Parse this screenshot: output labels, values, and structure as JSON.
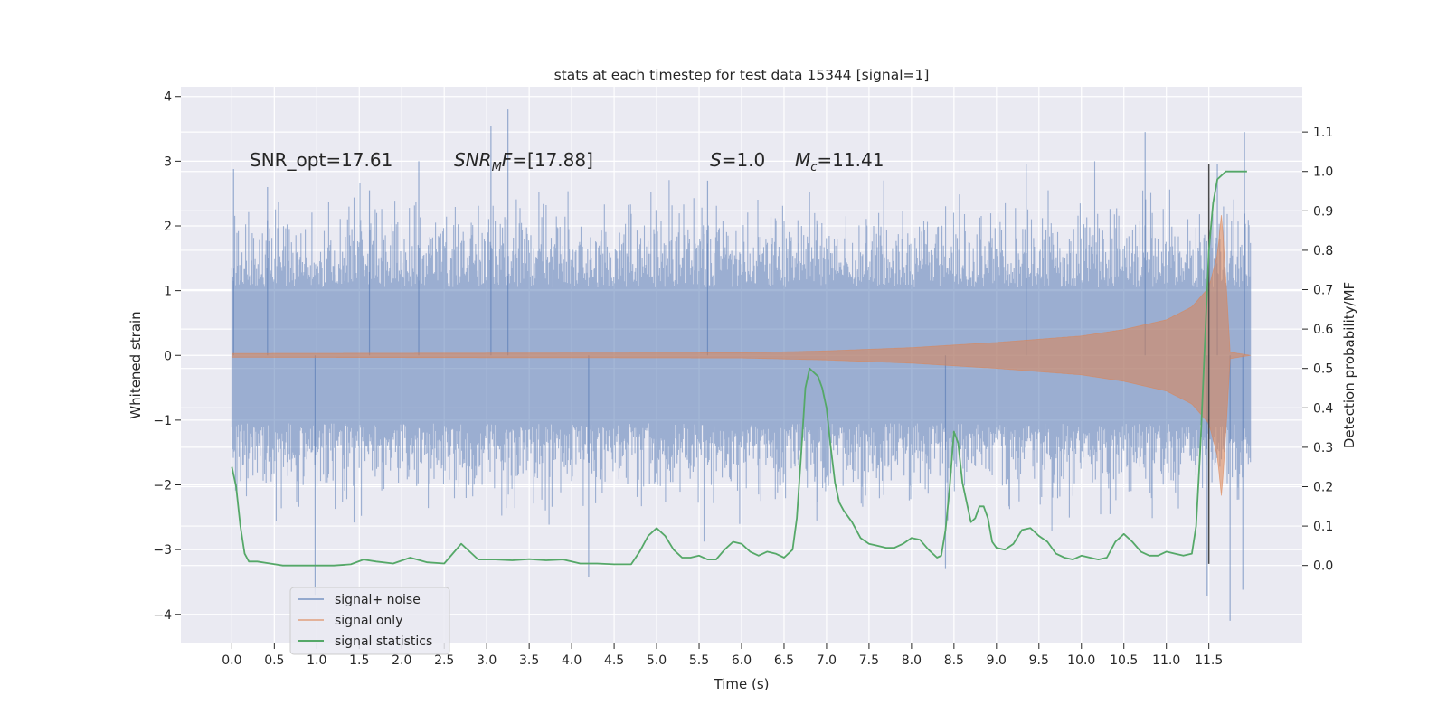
{
  "chart_data": {
    "type": "line",
    "title": "stats at each timestep for test data 15344 [signal=1]",
    "xlabel": "Time (s)",
    "ylabel": "Whitened strain",
    "y2label": "Detection probability/MF",
    "xlim": [
      -0.6,
      12.6
    ],
    "ylim": [
      -4.45,
      4.15
    ],
    "y2lim": [
      -0.198,
      1.215
    ],
    "x_ticks": [
      "0.0",
      "0.5",
      "1.0",
      "1.5",
      "2.0",
      "2.5",
      "3.0",
      "3.5",
      "4.0",
      "4.5",
      "5.0",
      "5.5",
      "6.0",
      "6.5",
      "7.0",
      "7.5",
      "8.0",
      "8.5",
      "9.0",
      "9.5",
      "10.0",
      "10.5",
      "11.0",
      "11.5"
    ],
    "y_ticks": [
      "4",
      "3",
      "2",
      "1",
      "0",
      "-1",
      "-2",
      "-3",
      "-4"
    ],
    "y_tick_text": [
      "4",
      "3",
      "2",
      "1",
      "0",
      "−1",
      "−2",
      "−3",
      "−4"
    ],
    "y2_ticks": [
      "1.1",
      "1.0",
      "0.9",
      "0.8",
      "0.7",
      "0.6",
      "0.5",
      "0.4",
      "0.3",
      "0.2",
      "0.1",
      "0.0"
    ],
    "grid": true,
    "legend_position": "lower-left",
    "annotations": {
      "snr_opt": "SNR_opt=17.61",
      "snr_mf_sym": "SNR",
      "snr_mf_sub": "M",
      "snr_mf_tail": "F",
      "snr_mf_val": "=[17.88]",
      "s_sym": "S",
      "s_val": "=1.0",
      "mc_sym": "M",
      "mc_sub": "c",
      "mc_val": "=11.41"
    },
    "series": [
      {
        "name": "signal+ noise",
        "color": "#4c72b0",
        "axis": "left",
        "x_range": [
          0.0,
          11.99
        ],
        "envelope_peaks": [
          {
            "x": 0.02,
            "y": 2.88
          },
          {
            "x": 0.42,
            "y": 2.6
          },
          {
            "x": 0.98,
            "y": -3.7
          },
          {
            "x": 1.62,
            "y": 2.55
          },
          {
            "x": 2.2,
            "y": 3.0
          },
          {
            "x": 3.05,
            "y": 3.55
          },
          {
            "x": 3.25,
            "y": 3.8
          },
          {
            "x": 4.2,
            "y": -3.42
          },
          {
            "x": 5.6,
            "y": 2.7
          },
          {
            "x": 8.4,
            "y": -3.3
          },
          {
            "x": 9.35,
            "y": 2.95
          },
          {
            "x": 10.75,
            "y": 3.45
          },
          {
            "x": 11.48,
            "y": -3.72
          },
          {
            "x": 11.6,
            "y": 2.95
          },
          {
            "x": 11.75,
            "y": -4.1
          },
          {
            "x": 11.92,
            "y": 3.45
          },
          {
            "x": 11.9,
            "y": -3.62
          }
        ],
        "typical_band": [
          -1.8,
          1.8
        ]
      },
      {
        "name": "signal only",
        "color": "#dd8452",
        "axis": "left",
        "amplitude_envelope": {
          "x": [
            0.0,
            6.0,
            7.0,
            8.0,
            9.0,
            10.0,
            10.5,
            11.0,
            11.3,
            11.5,
            11.6,
            11.65,
            11.7,
            11.75,
            11.99
          ],
          "amp": [
            0.03,
            0.04,
            0.07,
            0.12,
            0.2,
            0.3,
            0.4,
            0.55,
            0.75,
            1.05,
            1.55,
            2.2,
            1.2,
            0.05,
            0.0
          ]
        }
      },
      {
        "name": "signal statistics",
        "color": "#55a868",
        "axis": "right",
        "x": [
          0.0,
          0.05,
          0.1,
          0.15,
          0.2,
          0.3,
          0.45,
          0.6,
          0.8,
          1.0,
          1.2,
          1.4,
          1.55,
          1.7,
          1.9,
          2.1,
          2.3,
          2.5,
          2.6,
          2.7,
          2.8,
          2.9,
          3.1,
          3.3,
          3.5,
          3.7,
          3.9,
          4.1,
          4.3,
          4.5,
          4.7,
          4.8,
          4.9,
          5.0,
          5.1,
          5.2,
          5.3,
          5.4,
          5.5,
          5.6,
          5.7,
          5.8,
          5.9,
          6.0,
          6.1,
          6.2,
          6.3,
          6.4,
          6.5,
          6.6,
          6.65,
          6.7,
          6.75,
          6.8,
          6.85,
          6.9,
          6.95,
          7.0,
          7.05,
          7.1,
          7.15,
          7.2,
          7.3,
          7.4,
          7.5,
          7.6,
          7.7,
          7.8,
          7.9,
          8.0,
          8.1,
          8.2,
          8.3,
          8.35,
          8.4,
          8.45,
          8.5,
          8.55,
          8.6,
          8.65,
          8.7,
          8.75,
          8.8,
          8.85,
          8.9,
          8.95,
          9.0,
          9.1,
          9.2,
          9.3,
          9.4,
          9.5,
          9.6,
          9.7,
          9.8,
          9.9,
          10.0,
          10.1,
          10.2,
          10.3,
          10.4,
          10.5,
          10.6,
          10.7,
          10.8,
          10.9,
          11.0,
          11.1,
          11.2,
          11.3,
          11.35,
          11.4,
          11.45,
          11.5,
          11.55,
          11.6,
          11.7,
          11.8,
          11.9,
          11.95
        ],
        "y": [
          0.25,
          0.2,
          0.1,
          0.03,
          0.01,
          0.01,
          0.005,
          0.0,
          0.0,
          0.0,
          0.0,
          0.003,
          0.015,
          0.01,
          0.005,
          0.02,
          0.008,
          0.005,
          0.03,
          0.055,
          0.035,
          0.015,
          0.015,
          0.013,
          0.016,
          0.013,
          0.015,
          0.005,
          0.005,
          0.003,
          0.003,
          0.035,
          0.075,
          0.095,
          0.075,
          0.04,
          0.02,
          0.02,
          0.025,
          0.015,
          0.015,
          0.04,
          0.06,
          0.055,
          0.035,
          0.025,
          0.035,
          0.03,
          0.02,
          0.04,
          0.12,
          0.28,
          0.45,
          0.5,
          0.49,
          0.48,
          0.45,
          0.4,
          0.3,
          0.21,
          0.16,
          0.14,
          0.11,
          0.07,
          0.055,
          0.05,
          0.045,
          0.045,
          0.055,
          0.07,
          0.065,
          0.04,
          0.02,
          0.025,
          0.09,
          0.2,
          0.34,
          0.31,
          0.21,
          0.16,
          0.11,
          0.12,
          0.15,
          0.15,
          0.12,
          0.06,
          0.045,
          0.04,
          0.055,
          0.09,
          0.095,
          0.075,
          0.06,
          0.03,
          0.02,
          0.015,
          0.025,
          0.02,
          0.015,
          0.02,
          0.06,
          0.08,
          0.06,
          0.035,
          0.025,
          0.025,
          0.035,
          0.03,
          0.025,
          0.03,
          0.1,
          0.3,
          0.55,
          0.8,
          0.92,
          0.98,
          1.0,
          1.0,
          1.0,
          1.0
        ]
      }
    ],
    "vline": {
      "x": 11.5,
      "y_from": -3.22,
      "y_to": 2.95,
      "color": "#4a4a4a"
    }
  }
}
